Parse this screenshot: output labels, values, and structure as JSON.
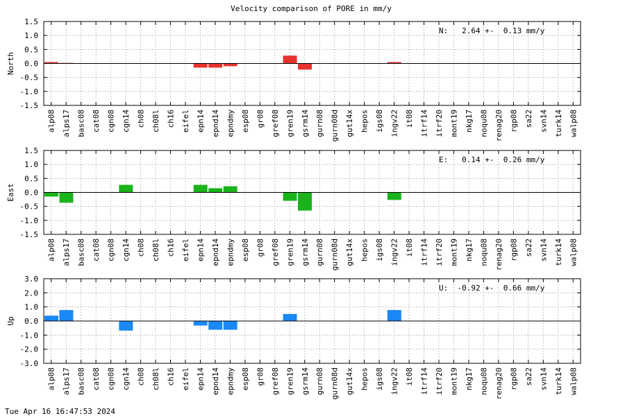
{
  "title": "Velocity comparison of PORE in mm/y",
  "footer_timestamp": "Tue Apr 16 16:47:53 2024",
  "categories": [
    "alp08",
    "alps17",
    "basc08",
    "cat08",
    "cgn08",
    "cgn14",
    "ch08",
    "ch08l",
    "ch16",
    "eifel",
    "epn14",
    "epnd14",
    "epndmy",
    "esp08",
    "gr08",
    "gref08",
    "gren19",
    "gsrm14",
    "gurn08",
    "gurn08d",
    "gut14x",
    "hepos",
    "igs08",
    "ingv22",
    "it08",
    "itrf14",
    "itrf20",
    "mont19",
    "nkg17",
    "noqu08",
    "renag20",
    "rgp08",
    "sa22",
    "svn14",
    "turk14",
    "walp08"
  ],
  "chart_data": [
    {
      "type": "bar",
      "ylabel": "North",
      "ylim": [
        -1.5,
        1.5
      ],
      "yticks": [
        "1.5",
        "1.0",
        "0.5",
        "0.0",
        "-0.5",
        "-1.0",
        "-1.5"
      ],
      "grid": true,
      "color": "#e8322e",
      "annotation": "N:   2.64 +-  0.13 mm/y",
      "series": [
        {
          "values": [
            0.05,
            0.02,
            null,
            null,
            null,
            null,
            null,
            null,
            null,
            null,
            -0.15,
            -0.15,
            -0.1,
            null,
            null,
            null,
            0.28,
            -0.22,
            null,
            null,
            null,
            null,
            null,
            0.05,
            null,
            null,
            null,
            null,
            null,
            null,
            null,
            null,
            null,
            null,
            null,
            null
          ]
        }
      ]
    },
    {
      "type": "bar",
      "ylabel": "East",
      "ylim": [
        -1.5,
        1.5
      ],
      "yticks": [
        "1.5",
        "1.0",
        "0.5",
        "0.0",
        "-0.5",
        "-1.0",
        "-1.5"
      ],
      "grid": true,
      "color": "#1ab41a",
      "annotation": "E:   0.14 +-  0.26 mm/y",
      "series": [
        {
          "values": [
            -0.15,
            -0.37,
            null,
            null,
            null,
            0.27,
            null,
            null,
            null,
            null,
            0.27,
            0.15,
            0.22,
            null,
            null,
            null,
            -0.3,
            -0.65,
            null,
            null,
            null,
            null,
            null,
            -0.27,
            null,
            null,
            null,
            null,
            null,
            null,
            null,
            null,
            null,
            null,
            null,
            null
          ]
        }
      ]
    },
    {
      "type": "bar",
      "ylabel": "Up",
      "ylim": [
        -3.0,
        3.0
      ],
      "yticks": [
        "3.0",
        "2.0",
        "1.0",
        "0.0",
        "-1.0",
        "-2.0",
        "-3.0"
      ],
      "grid": true,
      "color": "#1a88f5",
      "annotation": "U:  -0.92 +-  0.66 mm/y",
      "series": [
        {
          "values": [
            0.38,
            0.78,
            null,
            null,
            null,
            -0.68,
            null,
            null,
            null,
            null,
            -0.32,
            -0.62,
            -0.62,
            null,
            null,
            null,
            0.5,
            null,
            null,
            null,
            null,
            null,
            null,
            0.78,
            null,
            null,
            null,
            null,
            null,
            null,
            null,
            null,
            null,
            null,
            null,
            null
          ]
        }
      ]
    }
  ]
}
